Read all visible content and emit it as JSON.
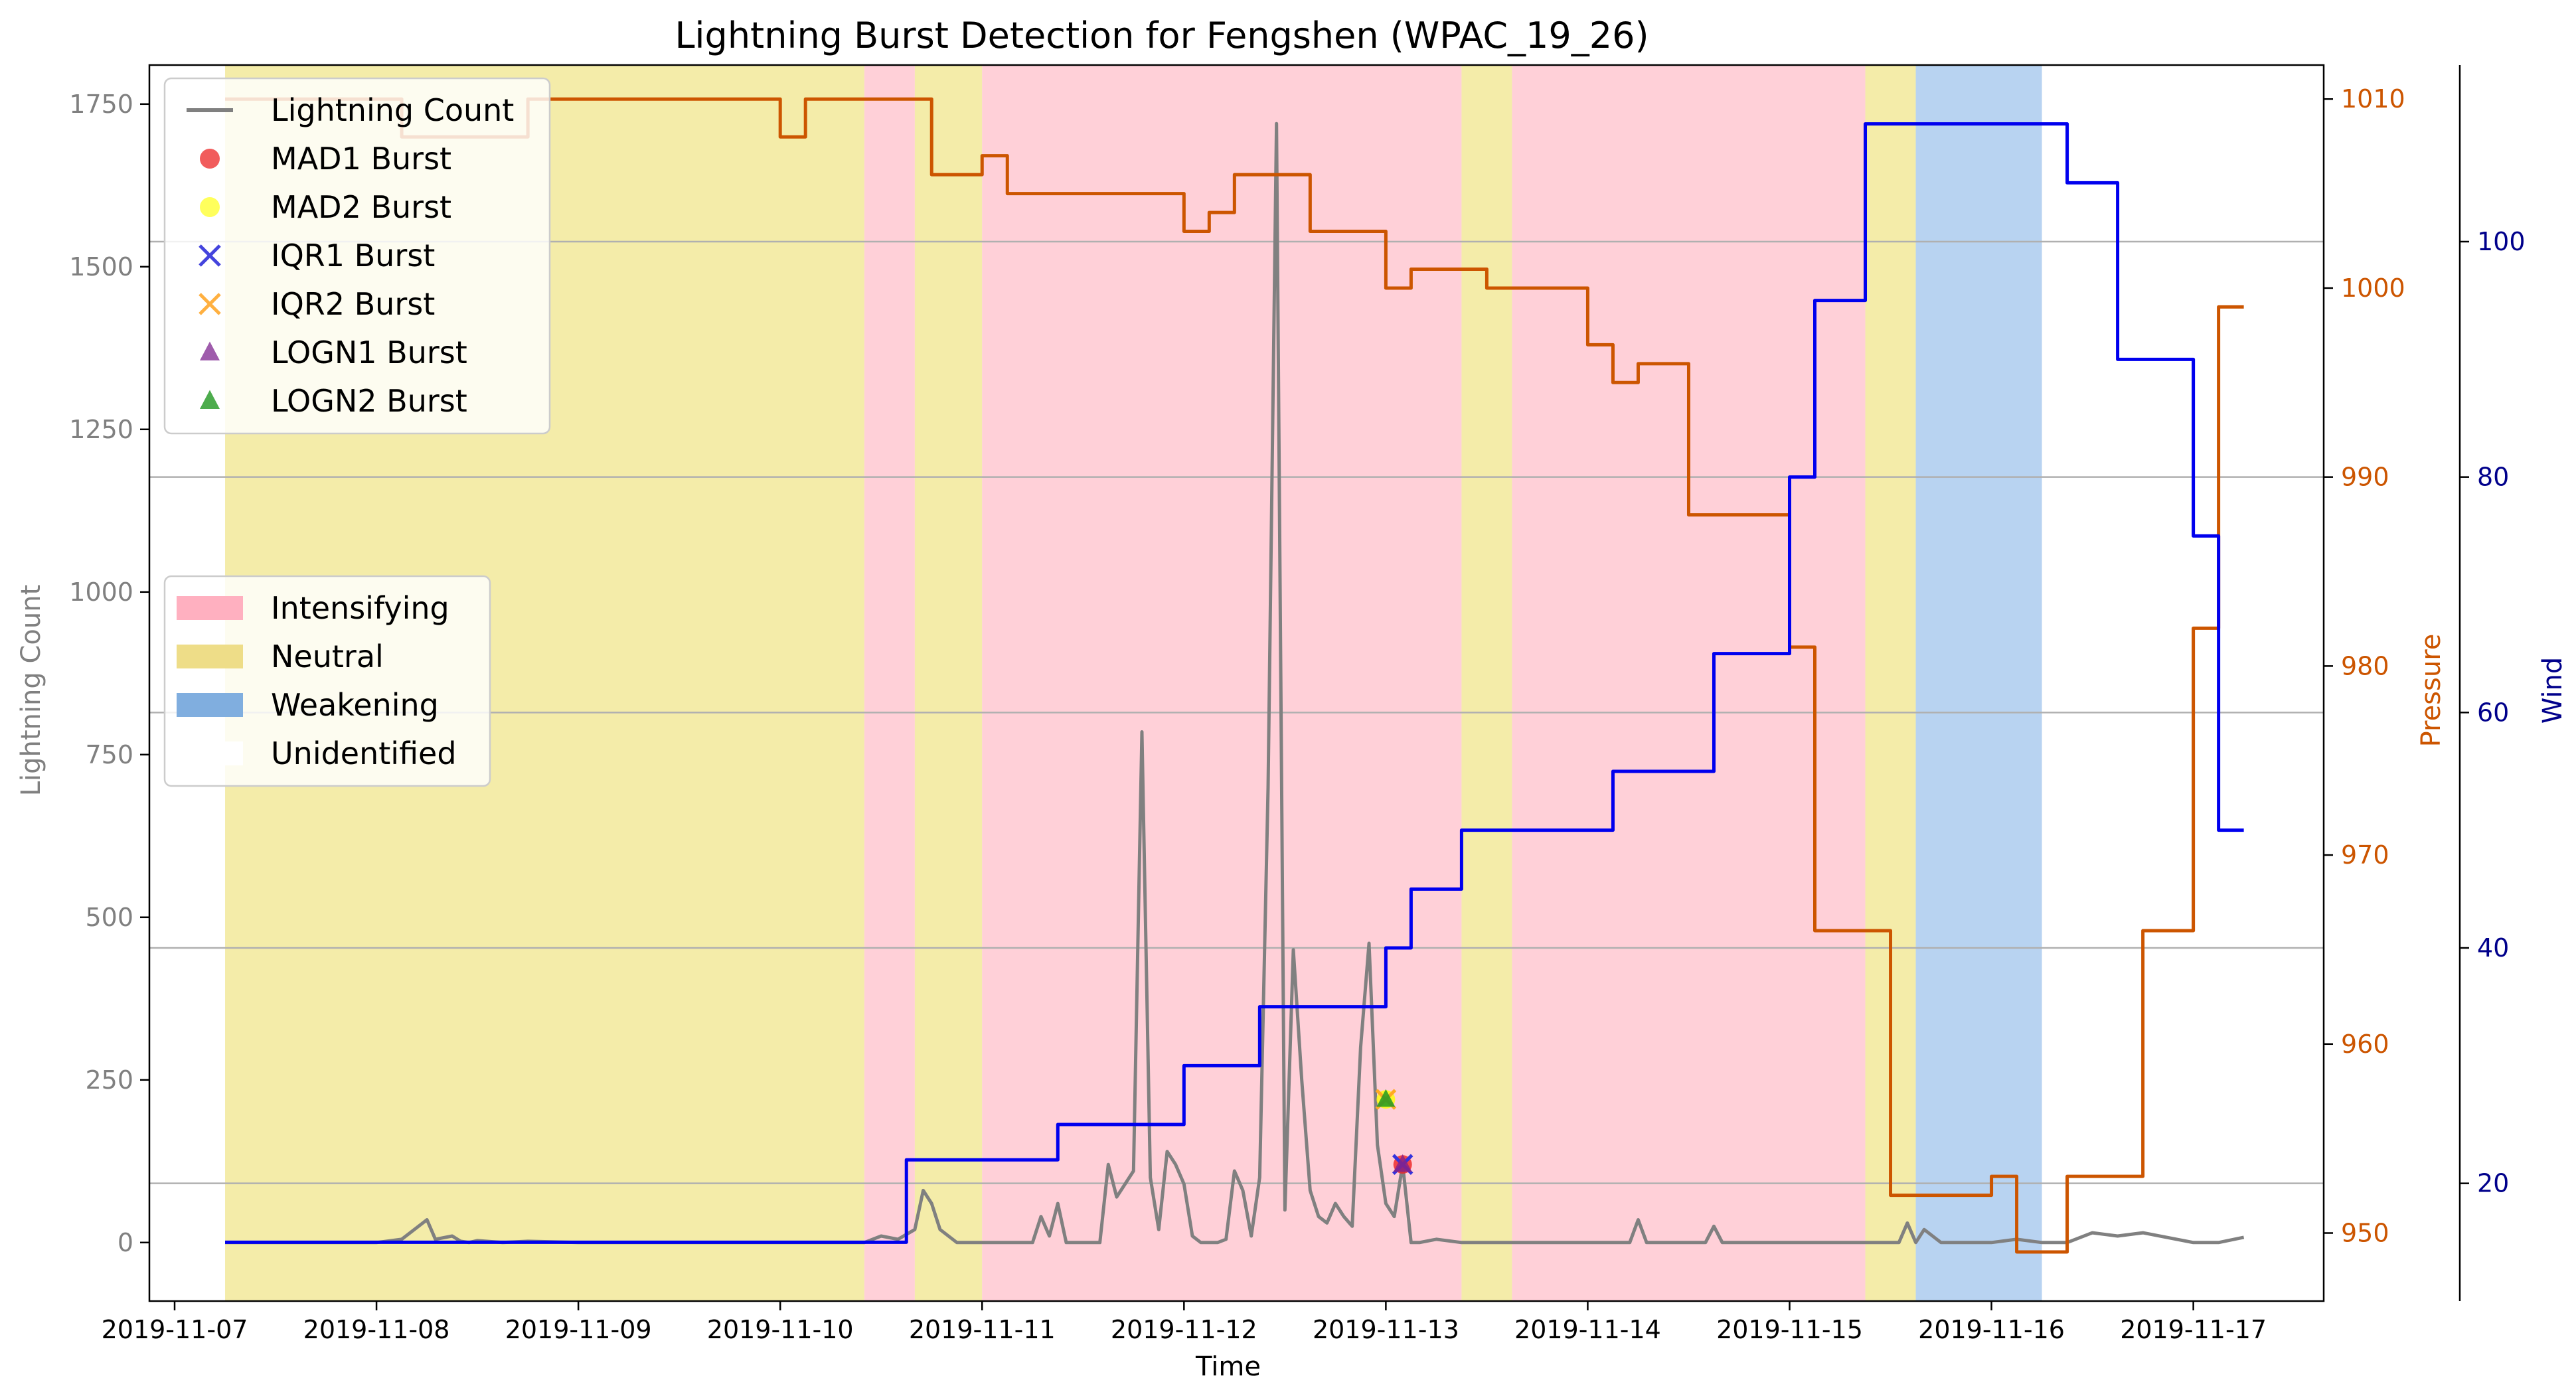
{
  "chart_data": {
    "type": "line",
    "title": "Lightning Burst Detection for Fengshen (WPAC_19_26)",
    "xlabel": "Time",
    "ylabel_left": "Lightning Count",
    "ylabel_pressure": "Pressure",
    "ylabel_wind": "Wind",
    "x_range": [
      "2019-11-06T21:00",
      "2019-11-17T15:30"
    ],
    "x_ticks": [
      "2019-11-07",
      "2019-11-08",
      "2019-11-09",
      "2019-11-10",
      "2019-11-11",
      "2019-11-12",
      "2019-11-13",
      "2019-11-14",
      "2019-11-15",
      "2019-11-16",
      "2019-11-17"
    ],
    "ylim_count": [
      -90,
      1810
    ],
    "yticks_count": [
      0,
      250,
      500,
      750,
      1000,
      1250,
      1500,
      1750
    ],
    "ylim_pressure": [
      946.4,
      1011.8
    ],
    "yticks_pressure": [
      950,
      960,
      970,
      980,
      990,
      1000,
      1010
    ],
    "ylim_wind": [
      10,
      115
    ],
    "yticks_wind": [
      20,
      40,
      60,
      80,
      100
    ],
    "grid_wind_lines": [
      20,
      40,
      60,
      80,
      100
    ],
    "colors": {
      "count": "#808080",
      "pressure": "#cc5500",
      "wind": "#0000ee",
      "Intensifying": "#ffc0cb",
      "Neutral": "#f0e68c",
      "Weakening": "#a0c4ec",
      "Unidentified": "#ffffff",
      "grid": "#b0b0b0",
      "wind_axis": "#00008b"
    },
    "phases": [
      {
        "start": "2019-11-07T06:00",
        "end": "2019-11-10T10:00",
        "phase": "Neutral"
      },
      {
        "start": "2019-11-10T10:00",
        "end": "2019-11-10T16:00",
        "phase": "Intensifying"
      },
      {
        "start": "2019-11-10T16:00",
        "end": "2019-11-11T00:00",
        "phase": "Neutral"
      },
      {
        "start": "2019-11-11T00:00",
        "end": "2019-11-13T09:00",
        "phase": "Intensifying"
      },
      {
        "start": "2019-11-13T09:00",
        "end": "2019-11-13T15:00",
        "phase": "Neutral"
      },
      {
        "start": "2019-11-13T15:00",
        "end": "2019-11-15T09:00",
        "phase": "Intensifying"
      },
      {
        "start": "2019-11-15T09:00",
        "end": "2019-11-15T15:00",
        "phase": "Neutral"
      },
      {
        "start": "2019-11-15T15:00",
        "end": "2019-11-16T06:00",
        "phase": "Weakening"
      }
    ],
    "series": [
      {
        "name": "Lightning Count",
        "axis": "count",
        "x": [
          "2019-11-07T06:00",
          "2019-11-08T00:00",
          "2019-11-08T03:00",
          "2019-11-08T06:00",
          "2019-11-08T07:00",
          "2019-11-08T09:00",
          "2019-11-08T10:00",
          "2019-11-08T11:00",
          "2019-11-08T12:00",
          "2019-11-08T15:00",
          "2019-11-08T18:00",
          "2019-11-09T00:00",
          "2019-11-10T00:00",
          "2019-11-10T10:00",
          "2019-11-10T12:00",
          "2019-11-10T14:00",
          "2019-11-10T16:00",
          "2019-11-10T17:00",
          "2019-11-10T18:00",
          "2019-11-10T19:00",
          "2019-11-10T21:00",
          "2019-11-11T00:00",
          "2019-11-11T03:00",
          "2019-11-11T06:00",
          "2019-11-11T07:00",
          "2019-11-11T08:00",
          "2019-11-11T09:00",
          "2019-11-11T10:00",
          "2019-11-11T12:00",
          "2019-11-11T14:00",
          "2019-11-11T15:00",
          "2019-11-11T16:00",
          "2019-11-11T17:00",
          "2019-11-11T18:00",
          "2019-11-11T19:00",
          "2019-11-11T20:00",
          "2019-11-11T21:00",
          "2019-11-11T22:00",
          "2019-11-11T23:00",
          "2019-11-12T00:00",
          "2019-11-12T01:00",
          "2019-11-12T02:00",
          "2019-11-12T03:00",
          "2019-11-12T04:00",
          "2019-11-12T05:00",
          "2019-11-12T06:00",
          "2019-11-12T07:00",
          "2019-11-12T08:00",
          "2019-11-12T09:00",
          "2019-11-12T10:00",
          "2019-11-12T11:00",
          "2019-11-12T12:00",
          "2019-11-12T13:00",
          "2019-11-12T14:00",
          "2019-11-12T15:00",
          "2019-11-12T16:00",
          "2019-11-12T17:00",
          "2019-11-12T18:00",
          "2019-11-12T19:00",
          "2019-11-12T20:00",
          "2019-11-12T21:00",
          "2019-11-12T22:00",
          "2019-11-12T23:00",
          "2019-11-13T00:00",
          "2019-11-13T01:00",
          "2019-11-13T02:00",
          "2019-11-13T03:00",
          "2019-11-13T04:00",
          "2019-11-13T06:00",
          "2019-11-13T09:00",
          "2019-11-14T00:00",
          "2019-11-14T05:00",
          "2019-11-14T06:00",
          "2019-11-14T07:00",
          "2019-11-14T10:00",
          "2019-11-14T14:00",
          "2019-11-14T15:00",
          "2019-11-14T16:00",
          "2019-11-14T20:00",
          "2019-11-15T00:00",
          "2019-11-15T12:00",
          "2019-11-15T13:00",
          "2019-11-15T14:00",
          "2019-11-15T15:00",
          "2019-11-15T16:00",
          "2019-11-15T18:00",
          "2019-11-16T00:00",
          "2019-11-16T03:00",
          "2019-11-16T06:00",
          "2019-11-16T09:00",
          "2019-11-16T12:00",
          "2019-11-16T15:00",
          "2019-11-16T18:00",
          "2019-11-17T00:00",
          "2019-11-17T03:00",
          "2019-11-17T06:00"
        ],
        "y": [
          0,
          0,
          5,
          35,
          5,
          10,
          2,
          0,
          3,
          0,
          2,
          0,
          0,
          0,
          10,
          5,
          20,
          80,
          60,
          20,
          0,
          0,
          0,
          0,
          40,
          10,
          60,
          0,
          0,
          0,
          120,
          70,
          90,
          110,
          785,
          100,
          20,
          140,
          120,
          90,
          10,
          0,
          0,
          0,
          5,
          110,
          80,
          10,
          100,
          700,
          1720,
          50,
          450,
          250,
          80,
          40,
          30,
          60,
          40,
          25,
          300,
          460,
          150,
          60,
          40,
          120,
          0,
          0,
          5,
          0,
          0,
          0,
          35,
          0,
          0,
          0,
          25,
          0,
          0,
          0,
          0,
          0,
          30,
          0,
          20,
          0,
          0,
          5,
          0,
          0,
          15,
          10,
          15,
          0,
          0,
          8
        ]
      },
      {
        "name": "Pressure",
        "axis": "pressure",
        "step": true,
        "x": [
          "2019-11-07T06:00",
          "2019-11-08T03:00",
          "2019-11-08T18:00",
          "2019-11-10T00:00",
          "2019-11-10T03:00",
          "2019-11-10T18:00",
          "2019-11-11T00:00",
          "2019-11-11T03:00",
          "2019-11-12T00:00",
          "2019-11-12T03:00",
          "2019-11-12T06:00",
          "2019-11-12T15:00",
          "2019-11-13T00:00",
          "2019-11-13T03:00",
          "2019-11-13T12:00",
          "2019-11-14T00:00",
          "2019-11-14T03:00",
          "2019-11-14T06:00",
          "2019-11-14T12:00",
          "2019-11-15T00:00",
          "2019-11-15T03:00",
          "2019-11-15T12:00",
          "2019-11-16T00:00",
          "2019-11-16T03:00",
          "2019-11-16T09:00",
          "2019-11-16T18:00",
          "2019-11-17T00:00",
          "2019-11-17T03:00",
          "2019-11-17T06:00"
        ],
        "y": [
          1010,
          1008,
          1010,
          1008,
          1010,
          1006,
          1007,
          1005,
          1003,
          1004,
          1006,
          1003,
          1000,
          1001,
          1000,
          997,
          995,
          996,
          988,
          981,
          966,
          952,
          953,
          949,
          953,
          966,
          982,
          999,
          999
        ]
      },
      {
        "name": "Wind",
        "axis": "wind",
        "step": true,
        "x": [
          "2019-11-07T06:00",
          "2019-11-10T15:00",
          "2019-11-11T09:00",
          "2019-11-12T00:00",
          "2019-11-12T09:00",
          "2019-11-13T00:00",
          "2019-11-13T03:00",
          "2019-11-13T09:00",
          "2019-11-14T03:00",
          "2019-11-14T15:00",
          "2019-11-15T00:00",
          "2019-11-15T03:00",
          "2019-11-15T09:00",
          "2019-11-16T09:00",
          "2019-11-16T15:00",
          "2019-11-17T00:00",
          "2019-11-17T03:00",
          "2019-11-17T06:00"
        ],
        "y": [
          15,
          22,
          25,
          30,
          35,
          40,
          45,
          50,
          55,
          65,
          80,
          95,
          110,
          105,
          90,
          75,
          50,
          50
        ]
      }
    ],
    "bursts": [
      {
        "name": "MAD1 Burst",
        "marker": "circle",
        "color": "#ee2222",
        "x": "2019-11-13T02:00",
        "y": 120
      },
      {
        "name": "MAD2 Burst",
        "marker": "circle",
        "color": "#ffff00",
        "x": "2019-11-13T00:00",
        "y": 220
      },
      {
        "name": "IQR1 Burst",
        "marker": "x",
        "color": "#3333dd",
        "x": "2019-11-13T02:00",
        "y": 120
      },
      {
        "name": "IQR2 Burst",
        "marker": "x",
        "color": "#ffaa22",
        "x": "2019-11-13T00:00",
        "y": 220
      },
      {
        "name": "LOGN1 Burst",
        "marker": "triangle",
        "color": "#882288",
        "x": "2019-11-13T02:00",
        "y": 120
      },
      {
        "name": "LOGN2 Burst",
        "marker": "triangle",
        "color": "#229922",
        "x": "2019-11-13T00:00",
        "y": 220
      }
    ],
    "legend_series": [
      {
        "label": "Lightning Count",
        "kind": "line",
        "color": "#808080"
      },
      {
        "label": "MAD1 Burst",
        "kind": "circle",
        "color": "#ee3333"
      },
      {
        "label": "MAD2 Burst",
        "kind": "circle",
        "color": "#ffff33"
      },
      {
        "label": "IQR1 Burst",
        "kind": "x",
        "color": "#4444dd"
      },
      {
        "label": "IQR2 Burst",
        "kind": "x",
        "color": "#ffb040"
      },
      {
        "label": "LOGN1 Burst",
        "kind": "triangle",
        "color": "#8e3f9e"
      },
      {
        "label": "LOGN2 Burst",
        "kind": "triangle",
        "color": "#2e9e2e"
      }
    ],
    "legend_phases": [
      {
        "label": "Intensifying",
        "color": "#ffb0c0"
      },
      {
        "label": "Neutral",
        "color": "#eedd88"
      },
      {
        "label": "Weakening",
        "color": "#80aedf"
      },
      {
        "label": "Unidentified",
        "color": "#ffffff"
      }
    ],
    "legend_series_placement": "upper-left",
    "legend_phases_placement": "center-left"
  }
}
